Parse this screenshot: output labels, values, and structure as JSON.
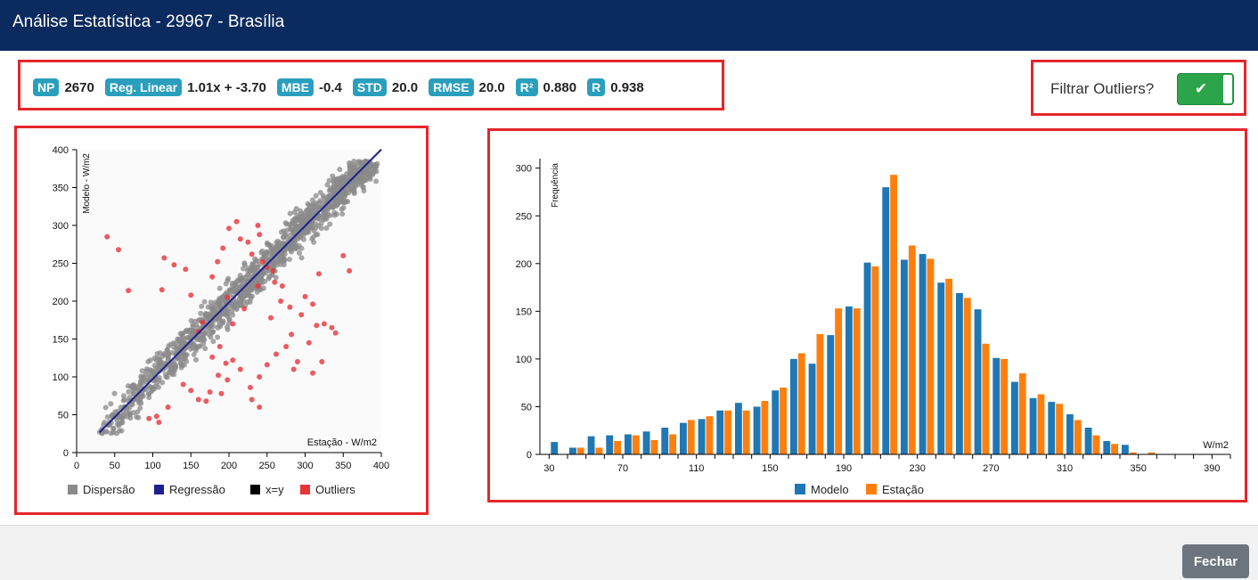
{
  "window": {
    "title": "Análise Estatística - 29967 - Brasília"
  },
  "stats": [
    {
      "badge": "NP",
      "value": "2670"
    },
    {
      "badge": "Reg. Linear",
      "value": "1.01x + -3.70"
    },
    {
      "badge": "MBE",
      "value": "-0.4"
    },
    {
      "badge": "STD",
      "value": "20.0"
    },
    {
      "badge": "RMSE",
      "value": "20.0"
    },
    {
      "badge": "R²",
      "value": "0.880"
    },
    {
      "badge": "R",
      "value": "0.938"
    }
  ],
  "filter": {
    "label": "Filtrar Outliers?",
    "enabled": true,
    "icon": "check-icon"
  },
  "footer": {
    "close_label": "Fechar"
  },
  "colors": {
    "scatter": "#8a8a8a",
    "regression": "#1f1f8f",
    "identity": "#000000",
    "outliers": "#e8333a",
    "modelo": "#1f77b4",
    "estacao": "#ff7f0e"
  },
  "chart_data": [
    {
      "type": "scatter",
      "title": "",
      "xlabel": "Estação - W/m2",
      "ylabel": "Modelo - W/m2",
      "xlim": [
        0,
        400
      ],
      "ylim": [
        0,
        400
      ],
      "xticks": [
        "0",
        "50",
        "100",
        "150",
        "200",
        "250",
        "300",
        "350",
        "400"
      ],
      "yticks": [
        "0",
        "50",
        "100",
        "150",
        "200",
        "250",
        "300",
        "350",
        "400"
      ],
      "legend": [
        "Dispersão",
        "Regressão",
        "x=y",
        "Outliers"
      ],
      "legend_position": "bottom",
      "regression": {
        "slope": 1.01,
        "intercept": -3.7,
        "x_range": [
          30,
          400
        ]
      },
      "outliers": [
        [
          40,
          285
        ],
        [
          55,
          268
        ],
        [
          68,
          214
        ],
        [
          115,
          257
        ],
        [
          112,
          215
        ],
        [
          128,
          248
        ],
        [
          143,
          242
        ],
        [
          150,
          208
        ],
        [
          165,
          172
        ],
        [
          160,
          160
        ],
        [
          178,
          232
        ],
        [
          185,
          252
        ],
        [
          192,
          270
        ],
        [
          200,
          296
        ],
        [
          210,
          305
        ],
        [
          215,
          282
        ],
        [
          225,
          278
        ],
        [
          230,
          262
        ],
        [
          238,
          300
        ],
        [
          240,
          288
        ],
        [
          244,
          252
        ],
        [
          250,
          245
        ],
        [
          260,
          225
        ],
        [
          270,
          220
        ],
        [
          280,
          192
        ],
        [
          295,
          182
        ],
        [
          300,
          206
        ],
        [
          310,
          196
        ],
        [
          318,
          236
        ],
        [
          325,
          170
        ],
        [
          335,
          165
        ],
        [
          340,
          158
        ],
        [
          315,
          168
        ],
        [
          305,
          145
        ],
        [
          282,
          156
        ],
        [
          275,
          140
        ],
        [
          262,
          130
        ],
        [
          250,
          116
        ],
        [
          240,
          100
        ],
        [
          228,
          86
        ],
        [
          215,
          110
        ],
        [
          205,
          122
        ],
        [
          198,
          96
        ],
        [
          190,
          78
        ],
        [
          175,
          80
        ],
        [
          170,
          68
        ],
        [
          160,
          70
        ],
        [
          150,
          82
        ],
        [
          140,
          90
        ],
        [
          120,
          60
        ],
        [
          105,
          48
        ],
        [
          95,
          45
        ],
        [
          108,
          40
        ],
        [
          188,
          140
        ],
        [
          178,
          126
        ],
        [
          255,
          178
        ],
        [
          268,
          200
        ],
        [
          322,
          120
        ],
        [
          310,
          105
        ],
        [
          290,
          120
        ],
        [
          285,
          110
        ],
        [
          230,
          70
        ],
        [
          240,
          60
        ],
        [
          220,
          190
        ],
        [
          258,
          240
        ],
        [
          238,
          220
        ],
        [
          198,
          205
        ],
        [
          205,
          170
        ],
        [
          350,
          260
        ],
        [
          358,
          240
        ],
        [
          186,
          102
        ],
        [
          196,
          118
        ]
      ],
      "scatter_summary": {
        "n": 2670,
        "x_range": [
          30,
          395
        ],
        "note_source": "NP"
      }
    },
    {
      "type": "bar",
      "title": "",
      "xlabel": "W/m2",
      "ylabel": "Frequência",
      "ylim": [
        0,
        310
      ],
      "yticks": [
        "0",
        "50",
        "100",
        "150",
        "200",
        "250",
        "300"
      ],
      "xticks": [
        "30",
        "70",
        "110",
        "150",
        "190",
        "230",
        "270",
        "310",
        "350",
        "390"
      ],
      "legend": [
        "Modelo",
        "Estação"
      ],
      "legend_position": "bottom",
      "categories": [
        35,
        45,
        55,
        65,
        75,
        85,
        95,
        105,
        115,
        125,
        135,
        145,
        155,
        165,
        175,
        185,
        195,
        205,
        215,
        225,
        235,
        245,
        255,
        265,
        275,
        285,
        295,
        305,
        315,
        325,
        335,
        345,
        355,
        365,
        375,
        385
      ],
      "series": [
        {
          "name": "Modelo",
          "values": [
            13,
            7,
            19,
            20,
            21,
            24,
            28,
            33,
            37,
            46,
            54,
            50,
            67,
            100,
            95,
            125,
            155,
            201,
            280,
            204,
            210,
            180,
            169,
            152,
            101,
            76,
            59,
            55,
            42,
            28,
            14,
            10,
            0,
            0,
            0,
            0
          ]
        },
        {
          "name": "Estação",
          "values": [
            0,
            7,
            7,
            14,
            20,
            15,
            21,
            36,
            40,
            46,
            46,
            56,
            70,
            106,
            126,
            153,
            153,
            197,
            293,
            219,
            205,
            184,
            164,
            116,
            100,
            85,
            63,
            53,
            36,
            20,
            11,
            2,
            2,
            0,
            0,
            0
          ]
        }
      ]
    }
  ]
}
